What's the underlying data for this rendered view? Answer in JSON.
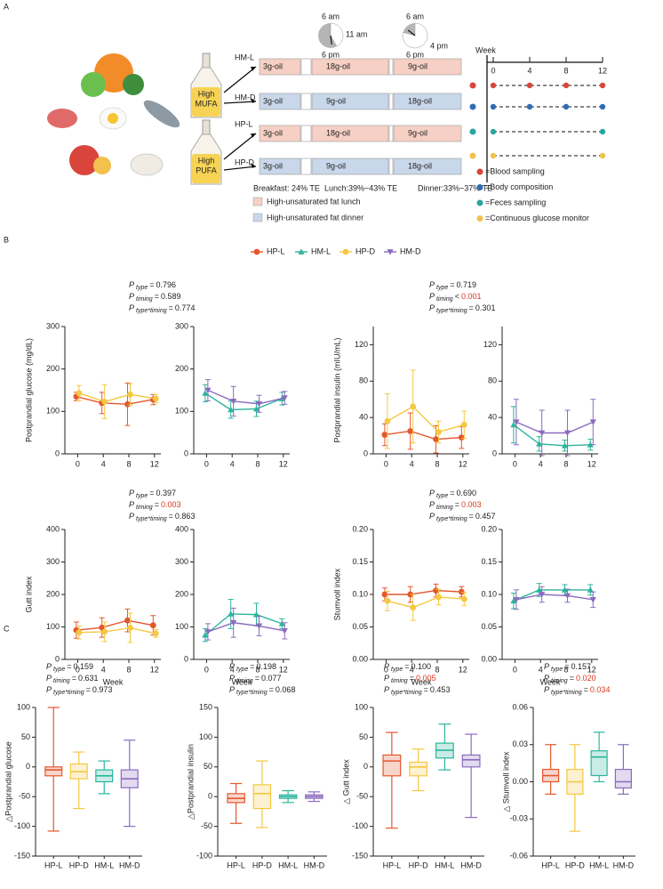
{
  "panel_labels": [
    "A",
    "B",
    "C"
  ],
  "stat_symbol": "P",
  "panel_a": {
    "clocks": [
      {
        "top": "6 am",
        "right": "11 am",
        "bottom": "6 pm"
      },
      {
        "top": "6 am",
        "right": "4 pm",
        "bottom": "6 pm"
      }
    ],
    "bottles": [
      [
        "High",
        "MUFA"
      ],
      [
        "High",
        "PUFA"
      ]
    ],
    "groups": [
      {
        "name": "HM-L",
        "meals": [
          "3g-oil",
          "18g-oil",
          "9g-oil"
        ],
        "key": 0
      },
      {
        "name": "HM-D",
        "meals": [
          "3g-oil",
          "9g-oil",
          "18g-oil"
        ],
        "key": 1
      },
      {
        "name": "HP-L",
        "meals": [
          "3g-oil",
          "18g-oil",
          "9g-oil"
        ],
        "key": 0
      },
      {
        "name": "HP-D",
        "meals": [
          "3g-oil",
          "9g-oil",
          "18g-oil"
        ],
        "key": 1
      }
    ],
    "meal_times": [
      "Breakfast: 24% TE",
      "Lunch:39%~43% TE",
      "Dinner:33%~37% TE"
    ],
    "key": [
      {
        "label": "High-unsaturated fat lunch",
        "color": "#f6d0c4"
      },
      {
        "label": "High-unsaturated fat dinner",
        "color": "#c9d7ea"
      }
    ],
    "timeline": {
      "title": "Week",
      "ticks": [
        0,
        4,
        8,
        12
      ]
    },
    "sampling": [
      {
        "label": "=Blood sampling",
        "color": "#d9453a",
        "weeks": [
          0,
          4,
          8,
          12
        ]
      },
      {
        "label": "=Body composition",
        "color": "#2f6db3",
        "weeks": [
          0,
          4,
          8,
          12
        ]
      },
      {
        "label": "=Feces sampling",
        "color": "#2aa5a0",
        "weeks": [
          0,
          12
        ]
      },
      {
        "label": "=Continuous glucose monitor",
        "color": "#f2c14e",
        "weeks": [
          0,
          12
        ]
      }
    ]
  },
  "chart_data": [
    {
      "type": "line",
      "ylabel": "Postprandial glucose (mg/dL)",
      "x": [
        0,
        4,
        8,
        12
      ],
      "xlim": [
        -2,
        13
      ],
      "xticks": [
        0,
        4,
        8,
        12
      ],
      "ylim": [
        0,
        300
      ],
      "yticks": [
        0,
        100,
        200,
        300
      ],
      "stats": [
        {
          "name": "type",
          "op": "=",
          "value": "0.796"
        },
        {
          "name": "timing",
          "op": "=",
          "value": "0.589"
        },
        {
          "name": "type*timing",
          "op": "=",
          "value": "0.774"
        }
      ],
      "series": [
        {
          "name": "HP-L",
          "color": "#e4572e",
          "marker": "circle",
          "values": [
            135,
            120,
            117,
            128
          ],
          "errors": [
            10,
            25,
            50,
            12
          ]
        },
        {
          "name": "HP-D",
          "color": "#f5c842",
          "marker": "circle",
          "values": [
            143,
            123,
            140,
            130
          ],
          "errors": [
            18,
            40,
            25,
            10
          ]
        }
      ]
    },
    {
      "type": "line",
      "x": [
        0,
        4,
        8,
        12
      ],
      "xlim": [
        -2,
        13
      ],
      "xticks": [
        0,
        4,
        8,
        12
      ],
      "ylim": [
        0,
        300
      ],
      "yticks": [
        0,
        100,
        200,
        300
      ],
      "series": [
        {
          "name": "HM-L",
          "color": "#2bb59c",
          "marker": "triangle",
          "values": [
            143,
            104,
            106,
            130
          ],
          "errors": [
            20,
            20,
            18,
            15
          ]
        },
        {
          "name": "HM-D",
          "color": "#8a6bbf",
          "marker": "triangle-down",
          "values": [
            150,
            124,
            118,
            132
          ],
          "errors": [
            25,
            35,
            20,
            15
          ]
        }
      ]
    },
    {
      "type": "line",
      "ylabel": "Postprandial insulin (mIU/mL)",
      "x": [
        0,
        4,
        8,
        12
      ],
      "xlim": [
        -2,
        13
      ],
      "xticks": [
        0,
        4,
        8,
        12
      ],
      "ylim": [
        0,
        140
      ],
      "yticks": [
        0,
        40,
        80,
        120
      ],
      "stats": [
        {
          "name": "type",
          "op": "=",
          "value": "0.719"
        },
        {
          "name": "timing",
          "op": "<",
          "value": "0.001",
          "color": "#d9381e"
        },
        {
          "name": "type*timing",
          "op": "=",
          "value": "0.301"
        }
      ],
      "series": [
        {
          "name": "HP-L",
          "color": "#e4572e",
          "marker": "circle",
          "values": [
            21,
            25,
            16,
            18
          ],
          "errors": [
            12,
            20,
            15,
            12
          ]
        },
        {
          "name": "HP-D",
          "color": "#f5c842",
          "marker": "circle",
          "values": [
            36,
            52,
            24,
            32
          ],
          "errors": [
            30,
            40,
            12,
            15
          ]
        }
      ]
    },
    {
      "type": "line",
      "x": [
        0,
        4,
        8,
        12
      ],
      "xlim": [
        -2,
        13
      ],
      "xticks": [
        0,
        4,
        8,
        12
      ],
      "ylim": [
        0,
        140
      ],
      "yticks": [
        0,
        40,
        80,
        120
      ],
      "series": [
        {
          "name": "HM-L",
          "color": "#2bb59c",
          "marker": "triangle",
          "values": [
            32,
            11,
            9,
            10
          ],
          "errors": [
            20,
            8,
            6,
            6
          ]
        },
        {
          "name": "HM-D",
          "color": "#8a6bbf",
          "marker": "triangle-down",
          "values": [
            35,
            23,
            23,
            35
          ],
          "errors": [
            25,
            25,
            25,
            25
          ]
        }
      ]
    },
    {
      "type": "line",
      "ylabel": "Gutt index",
      "xlabel": "Week",
      "x": [
        0,
        4,
        8,
        12
      ],
      "xlim": [
        -2,
        13
      ],
      "xticks": [
        0,
        4,
        8,
        12
      ],
      "ylim": [
        0,
        400
      ],
      "yticks": [
        0,
        100,
        200,
        300,
        400
      ],
      "stats": [
        {
          "name": "type",
          "op": "=",
          "value": "0.397"
        },
        {
          "name": "timing",
          "op": "=",
          "value": "0.003",
          "color": "#d9381e"
        },
        {
          "name": "type*timing",
          "op": "=",
          "value": "0.863"
        }
      ],
      "series": [
        {
          "name": "HP-L",
          "color": "#e4572e",
          "marker": "circle",
          "values": [
            90,
            98,
            120,
            105
          ],
          "errors": [
            25,
            30,
            35,
            30
          ]
        },
        {
          "name": "HP-D",
          "color": "#f5c842",
          "marker": "circle",
          "values": [
            83,
            85,
            97,
            80
          ],
          "errors": [
            20,
            30,
            45,
            12
          ]
        }
      ]
    },
    {
      "type": "line",
      "xlabel": "Week",
      "x": [
        0,
        4,
        8,
        12
      ],
      "xlim": [
        -2,
        13
      ],
      "xticks": [
        0,
        4,
        8,
        12
      ],
      "ylim": [
        0,
        400
      ],
      "yticks": [
        0,
        100,
        200,
        300,
        400
      ],
      "series": [
        {
          "name": "HM-L",
          "color": "#2bb59c",
          "marker": "triangle",
          "values": [
            75,
            140,
            138,
            110
          ],
          "errors": [
            20,
            45,
            35,
            15
          ]
        },
        {
          "name": "HM-D",
          "color": "#8a6bbf",
          "marker": "triangle-down",
          "values": [
            85,
            113,
            103,
            88
          ],
          "errors": [
            25,
            45,
            30,
            25
          ]
        }
      ]
    },
    {
      "type": "line",
      "ylabel": "Stumvoll index",
      "xlabel": "Week",
      "x": [
        0,
        4,
        8,
        12
      ],
      "xlim": [
        -2,
        13
      ],
      "xticks": [
        0,
        4,
        8,
        12
      ],
      "ylim": [
        0,
        0.2
      ],
      "yticks": [
        {
          "value": 0,
          "label": "0.00"
        },
        0.05,
        {
          "value": 0.1,
          "label": "0.10"
        },
        0.15,
        {
          "value": 0.2,
          "label": "0.20"
        }
      ],
      "stats": [
        {
          "name": "type",
          "op": "=",
          "value": "0.690"
        },
        {
          "name": "timing",
          "op": "=",
          "value": "0.003",
          "color": "#d9381e"
        },
        {
          "name": "type*timing",
          "op": "=",
          "value": "0.457"
        }
      ],
      "series": [
        {
          "name": "HP-L",
          "color": "#e4572e",
          "marker": "circle",
          "values": [
            0.1,
            0.1,
            0.106,
            0.104
          ],
          "errors": [
            0.01,
            0.012,
            0.01,
            0.008
          ]
        },
        {
          "name": "HP-D",
          "color": "#f5c842",
          "marker": "circle",
          "values": [
            0.09,
            0.08,
            0.096,
            0.093
          ],
          "errors": [
            0.015,
            0.02,
            0.012,
            0.01
          ]
        }
      ]
    },
    {
      "type": "line",
      "xlabel": "Week",
      "x": [
        0,
        4,
        8,
        12
      ],
      "xlim": [
        -2,
        13
      ],
      "xticks": [
        0,
        4,
        8,
        12
      ],
      "ylim": [
        0,
        0.2
      ],
      "yticks": [
        {
          "value": 0,
          "label": "0.00"
        },
        0.05,
        {
          "value": 0.1,
          "label": "0.10"
        },
        0.15,
        {
          "value": 0.2,
          "label": "0.20"
        }
      ],
      "series": [
        {
          "name": "HM-L",
          "color": "#2bb59c",
          "marker": "triangle",
          "values": [
            0.09,
            0.107,
            0.107,
            0.107
          ],
          "errors": [
            0.012,
            0.01,
            0.008,
            0.008
          ]
        },
        {
          "name": "HM-D",
          "color": "#8a6bbf",
          "marker": "triangle-down",
          "values": [
            0.092,
            0.1,
            0.098,
            0.092
          ],
          "errors": [
            0.015,
            0.012,
            0.01,
            0.012
          ]
        }
      ]
    },
    {
      "type": "box",
      "ylabel": "△Postprandial glucose",
      "categories": [
        "HP-L",
        "HP-D",
        "HM-L",
        "HM-D"
      ],
      "colors": [
        "#e4572e",
        "#f5c842",
        "#2bb59c",
        "#8a6bbf"
      ],
      "ylim": [
        -150,
        100
      ],
      "yticks": [
        -150,
        -100,
        -50,
        0,
        50,
        100
      ],
      "stats": [
        {
          "name": "type",
          "op": "=",
          "value": "0.159"
        },
        {
          "name": "timing",
          "op": "=",
          "value": "0.631"
        },
        {
          "name": "type*timing",
          "op": "=",
          "value": "0.973"
        }
      ],
      "boxes": [
        {
          "min": -108,
          "q1": -15,
          "median": -5,
          "q3": 0,
          "max": 100
        },
        {
          "min": -70,
          "q1": -20,
          "median": -8,
          "q3": 5,
          "max": 25
        },
        {
          "min": -45,
          "q1": -25,
          "median": -15,
          "q3": -5,
          "max": 10
        },
        {
          "min": -100,
          "q1": -35,
          "median": -20,
          "q3": -5,
          "max": 45
        }
      ]
    },
    {
      "type": "box",
      "ylabel": "△Postprandial insulin",
      "categories": [
        "HP-L",
        "HP-D",
        "HM-L",
        "HM-D"
      ],
      "colors": [
        "#e4572e",
        "#f5c842",
        "#2bb59c",
        "#8a6bbf"
      ],
      "ylim": [
        -100,
        150
      ],
      "yticks": [
        -100,
        -50,
        0,
        50,
        100,
        150
      ],
      "stats": [
        {
          "name": "type",
          "op": "=",
          "value": "0.198"
        },
        {
          "name": "timing",
          "op": "=",
          "value": "0.077"
        },
        {
          "name": "type*timing",
          "op": "=",
          "value": "0.068"
        }
      ],
      "boxes": [
        {
          "min": -45,
          "q1": -10,
          "median": -3,
          "q3": 5,
          "max": 22
        },
        {
          "min": -52,
          "q1": -20,
          "median": 5,
          "q3": 20,
          "max": 60
        },
        {
          "min": -10,
          "q1": -3,
          "median": 0,
          "q3": 3,
          "max": 10
        },
        {
          "min": -8,
          "q1": -3,
          "median": 0,
          "q3": 3,
          "max": 8
        }
      ]
    },
    {
      "type": "box",
      "ylabel": "△ Gutt index",
      "categories": [
        "HP-L",
        "HP-D",
        "HM-L",
        "HM-D"
      ],
      "colors": [
        "#e4572e",
        "#f5c842",
        "#2bb59c",
        "#8a6bbf"
      ],
      "ylim": [
        -150,
        100
      ],
      "yticks": [
        -150,
        -100,
        -50,
        0,
        50,
        100
      ],
      "stats": [
        {
          "name": "type",
          "op": "=",
          "value": "0.100"
        },
        {
          "name": "timing",
          "op": "=",
          "value": "0.005",
          "color": "#d9381e"
        },
        {
          "name": "type*timing",
          "op": "=",
          "value": "0.453"
        }
      ],
      "boxes": [
        {
          "min": -103,
          "q1": -15,
          "median": 10,
          "q3": 20,
          "max": 58
        },
        {
          "min": -40,
          "q1": -15,
          "median": 0,
          "q3": 8,
          "max": 30
        },
        {
          "min": -5,
          "q1": 15,
          "median": 28,
          "q3": 40,
          "max": 72
        },
        {
          "min": -85,
          "q1": 0,
          "median": 12,
          "q3": 20,
          "max": 55
        }
      ]
    },
    {
      "type": "box",
      "ylabel": "△ Stumvoll index",
      "categories": [
        "HP-L",
        "HP-D",
        "HM-L",
        "HM-D"
      ],
      "colors": [
        "#e4572e",
        "#f5c842",
        "#2bb59c",
        "#8a6bbf"
      ],
      "ylim": [
        -0.06,
        0.06
      ],
      "yticks": [
        -0.06,
        -0.03,
        {
          "value": 0,
          "label": "0.00"
        },
        0.03,
        0.06
      ],
      "stats": [
        {
          "name": "type",
          "op": "=",
          "value": "0.157"
        },
        {
          "name": "timing",
          "op": "=",
          "value": "0.020",
          "color": "#d9381e"
        },
        {
          "name": "type*timing",
          "op": "=",
          "value": "0.034",
          "color": "#d9381e"
        }
      ],
      "boxes": [
        {
          "min": -0.01,
          "q1": 0,
          "median": 0.005,
          "q3": 0.01,
          "max": 0.03
        },
        {
          "min": -0.04,
          "q1": -0.01,
          "median": 0,
          "q3": 0.01,
          "max": 0.03
        },
        {
          "min": 0,
          "q1": 0.005,
          "median": 0.02,
          "q3": 0.025,
          "max": 0.04
        },
        {
          "min": -0.01,
          "q1": -0.005,
          "median": 0,
          "q3": 0.01,
          "max": 0.03
        }
      ]
    }
  ]
}
